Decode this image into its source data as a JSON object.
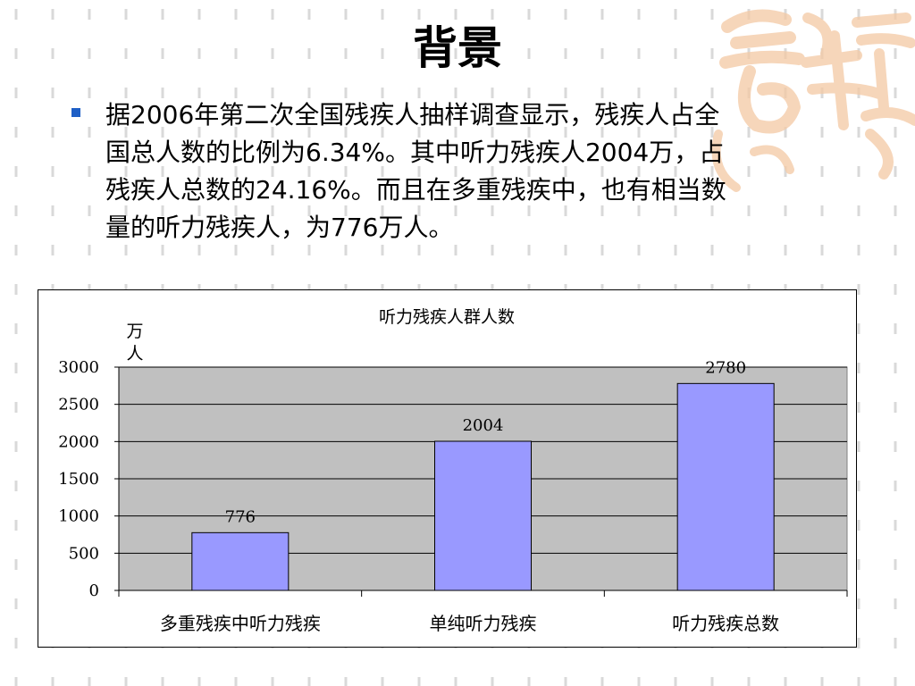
{
  "slide": {
    "title": "背景",
    "bullet": "据2006年第二次全国残疾人抽样调查显示，残疾人占全国总人数的比例为6.34%。其中听力残疾人2004万，占残疾人总数的24.16%。而且在多重残疾中，也有相当数量的听力残疾人，为776万人。"
  },
  "colors": {
    "bar_fill": "#9999ff",
    "plot_bg": "#c0c0c0",
    "bullet": "#1e5fc6",
    "decoration": "#f4c9a4"
  },
  "chart_data": {
    "type": "bar",
    "title": "听力残疾人群人数",
    "ylabel": "万人",
    "categories": [
      "多重残疾中听力残疾",
      "单纯听力残疾",
      "听力残疾总数"
    ],
    "values": [
      776,
      2004,
      2780
    ],
    "ylim": [
      0,
      3000
    ],
    "yticks": [
      0,
      500,
      1000,
      1500,
      2000,
      2500,
      3000
    ],
    "grid": true,
    "legend": "none"
  }
}
